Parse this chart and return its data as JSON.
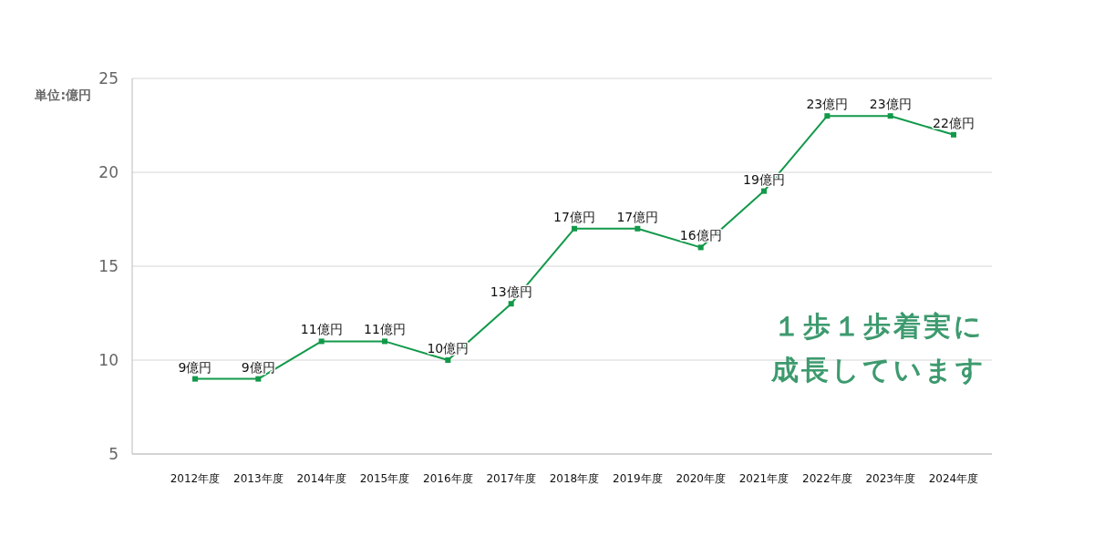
{
  "chart_data": {
    "type": "line",
    "ylabel": "単位:億円",
    "annotations": [
      "１歩１歩着実に",
      "成長しています"
    ],
    "categories": [
      "2012年度",
      "2013年度",
      "2014年度",
      "2015年度",
      "2016年度",
      "2017年度",
      "2018年度",
      "2019年度",
      "2020年度",
      "2021年度",
      "2022年度",
      "2023年度",
      "2024年度"
    ],
    "values": [
      9,
      9,
      11,
      11,
      10,
      13,
      17,
      17,
      16,
      19,
      23,
      23,
      22
    ],
    "value_labels": [
      "9億円",
      "9億円",
      "11億円",
      "11億円",
      "10億円",
      "13億円",
      "17億円",
      "17億円",
      "16億円",
      "19億円",
      "23億円",
      "23億円",
      "22億円"
    ],
    "color": "#12994a",
    "marker": "square",
    "ylim": [
      5,
      25
    ],
    "yticks": [
      5,
      10,
      15,
      20,
      25
    ],
    "grid": "y"
  }
}
